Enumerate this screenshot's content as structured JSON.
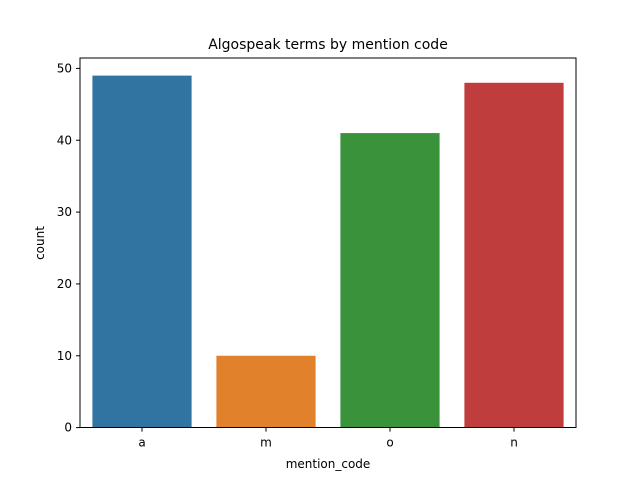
{
  "chart_data": {
    "type": "bar",
    "title": "Algospeak terms by mention code",
    "xlabel": "mention_code",
    "ylabel": "count",
    "categories": [
      "a",
      "m",
      "o",
      "n"
    ],
    "values": [
      49,
      10,
      41,
      48
    ],
    "colors": [
      "#3274a1",
      "#e1812c",
      "#3a923a",
      "#c03d3e"
    ],
    "ylim": [
      0,
      51.45
    ],
    "yticks": [
      "0",
      "10",
      "20",
      "30",
      "40",
      "50"
    ],
    "grid": false,
    "legend": "none"
  }
}
